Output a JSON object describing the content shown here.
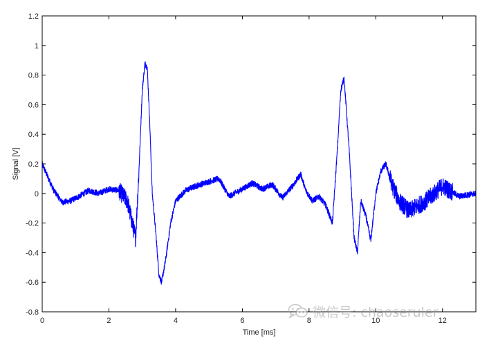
{
  "chart_data": {
    "type": "line",
    "xlabel": "Time [ms]",
    "ylabel": "Signal [V]",
    "xlim": [
      0,
      13
    ],
    "ylim": [
      -0.8,
      1.2
    ],
    "xticks": [
      0,
      2,
      4,
      6,
      8,
      10,
      12
    ],
    "yticks": [
      -0.8,
      -0.6,
      -0.4,
      -0.2,
      0,
      0.2,
      0.4,
      0.6,
      0.8,
      1,
      1.2
    ],
    "xtick_labels": [
      "0",
      "2",
      "4",
      "6",
      "8",
      "10",
      "12"
    ],
    "ytick_labels": [
      "-0.8",
      "-0.6",
      "-0.4",
      "-0.2",
      "0",
      "0.2",
      "0.4",
      "0.6",
      "0.8",
      "1",
      "1.2"
    ],
    "grid": false,
    "legend": "none",
    "series": [
      {
        "color": "#0000ff",
        "noise_amplitude": 0.02,
        "x": [
          0,
          0.15,
          0.35,
          0.6,
          0.85,
          1.1,
          1.4,
          1.7,
          2.0,
          2.3,
          2.55,
          2.7,
          2.8,
          2.9,
          3.0,
          3.08,
          3.15,
          3.22,
          3.3,
          3.4,
          3.5,
          3.58,
          3.7,
          3.85,
          4.0,
          4.3,
          4.6,
          5.0,
          5.3,
          5.6,
          6.0,
          6.3,
          6.6,
          6.9,
          7.2,
          7.5,
          7.75,
          7.9,
          8.1,
          8.3,
          8.5,
          8.7,
          8.85,
          8.95,
          9.05,
          9.2,
          9.35,
          9.45,
          9.55,
          9.7,
          9.85,
          10.0,
          10.15,
          10.3,
          10.5,
          10.7,
          11.0,
          11.5,
          12.0,
          12.5,
          13.0
        ],
        "y": [
          0.2,
          0.12,
          0.02,
          -0.06,
          -0.05,
          -0.02,
          0.02,
          0.0,
          0.03,
          0.02,
          -0.05,
          -0.2,
          -0.3,
          0.15,
          0.7,
          0.88,
          0.85,
          0.5,
          0.0,
          -0.25,
          -0.55,
          -0.6,
          -0.45,
          -0.2,
          -0.05,
          0.02,
          0.05,
          0.08,
          0.1,
          -0.02,
          0.03,
          0.07,
          0.03,
          0.06,
          -0.03,
          0.05,
          0.13,
          0.02,
          -0.05,
          -0.02,
          -0.08,
          -0.2,
          0.3,
          0.7,
          0.78,
          0.3,
          -0.3,
          -0.4,
          -0.05,
          -0.15,
          -0.32,
          0.0,
          0.15,
          0.2,
          0.05,
          -0.05,
          -0.12,
          -0.05,
          0.05,
          -0.02,
          0.0
        ]
      }
    ]
  },
  "watermark": {
    "text": "微信号: chaoseruler",
    "icon": "wechat-logo-icon"
  }
}
